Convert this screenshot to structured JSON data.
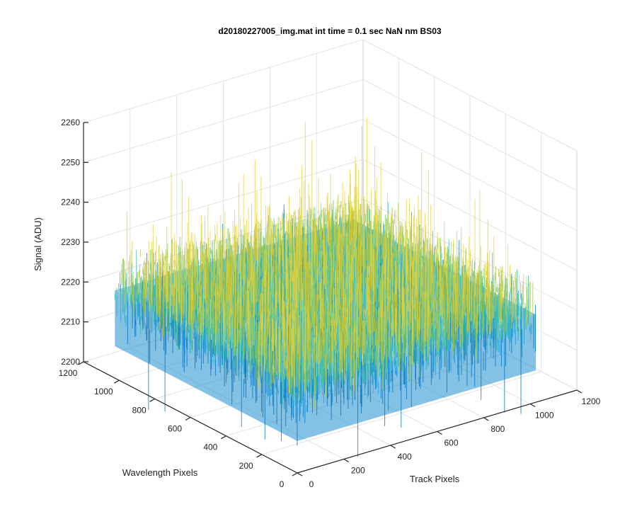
{
  "chart_data": {
    "type": "surface",
    "title": "d20180227005_img.mat int time = 0.1 sec  NaN nm BS03",
    "xlabel": "Track Pixels",
    "ylabel": "Wavelength Pixels",
    "zlabel": "Signal (ADU)",
    "x_range": [
      0,
      1200
    ],
    "y_range": [
      0,
      1200
    ],
    "z_range": [
      2200,
      2260
    ],
    "x_ticks": [
      "0",
      "200",
      "400",
      "600",
      "800",
      "1000",
      "1200"
    ],
    "y_ticks": [
      "0",
      "200",
      "400",
      "600",
      "800",
      "1000",
      "1200"
    ],
    "z_ticks": [
      "2200",
      "2210",
      "2220",
      "2230",
      "2240",
      "2250",
      "2260"
    ],
    "data_extent": {
      "x": [
        0,
        1024
      ],
      "y": [
        0,
        1024
      ]
    },
    "signal_mean": 2222,
    "signal_spread": [
      2212,
      2235
    ],
    "signal_peak": 2254,
    "colormap": [
      "#0072bd",
      "#1a9ad8",
      "#2ab6b0",
      "#5cc48a",
      "#a8c84a",
      "#e6d23a"
    ],
    "grid": true,
    "box": "open"
  }
}
